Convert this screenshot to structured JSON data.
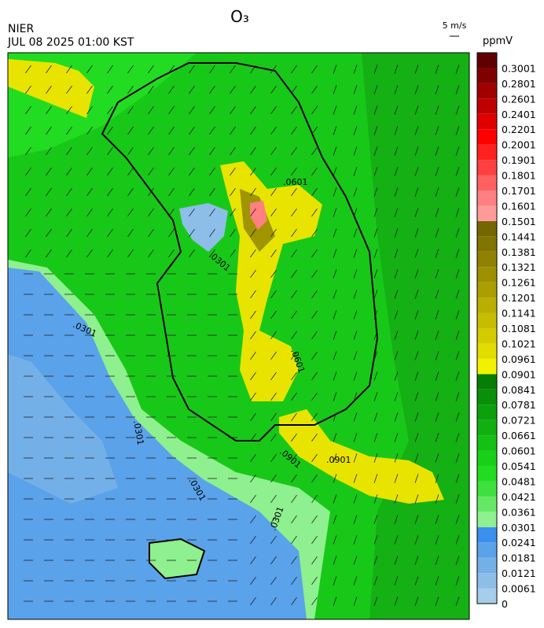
{
  "header": {
    "title": "O₃",
    "agency": "NIER",
    "timestamp": "JUL 08 2025 01:00 KST",
    "wind_scale": "5 m/s",
    "unit": "ppmV"
  },
  "colorbar": [
    {
      "label": "0",
      "color": "#a6cdea"
    },
    {
      "label": "0.0061",
      "color": "#8cbee8"
    },
    {
      "label": "0.0121",
      "color": "#74b0e8"
    },
    {
      "label": "0.0181",
      "color": "#5aa2ea"
    },
    {
      "label": "0.0241",
      "color": "#3a90ec"
    },
    {
      "label": "0.0301",
      "color": "#8ef08e"
    },
    {
      "label": "0.0361",
      "color": "#66e866"
    },
    {
      "label": "0.0421",
      "color": "#3ee03e"
    },
    {
      "label": "0.0481",
      "color": "#22dc22"
    },
    {
      "label": "0.0541",
      "color": "#18d018"
    },
    {
      "label": "0.0601",
      "color": "#14c014"
    },
    {
      "label": "0.0661",
      "color": "#10b010"
    },
    {
      "label": "0.0721",
      "color": "#0ca00c"
    },
    {
      "label": "0.0781",
      "color": "#089008"
    },
    {
      "label": "0.0841",
      "color": "#067e06"
    },
    {
      "label": "0.0901",
      "color": "#f2f200"
    },
    {
      "label": "0.0961",
      "color": "#e2dc00"
    },
    {
      "label": "0.1021",
      "color": "#d4cc00"
    },
    {
      "label": "0.1081",
      "color": "#c8bc00"
    },
    {
      "label": "0.1141",
      "color": "#baae00"
    },
    {
      "label": "0.1201",
      "color": "#ac9e00"
    },
    {
      "label": "0.1261",
      "color": "#9e9000"
    },
    {
      "label": "0.1321",
      "color": "#908200"
    },
    {
      "label": "0.1381",
      "color": "#827400"
    },
    {
      "label": "0.1441",
      "color": "#746600"
    },
    {
      "label": "0.1501",
      "color": "#ff9a9a"
    },
    {
      "label": "0.1601",
      "color": "#ff8080"
    },
    {
      "label": "0.1701",
      "color": "#ff6060"
    },
    {
      "label": "0.1801",
      "color": "#ff4040"
    },
    {
      "label": "0.1901",
      "color": "#ff2020"
    },
    {
      "label": "0.2001",
      "color": "#ff0000"
    },
    {
      "label": "0.2201",
      "color": "#e00000"
    },
    {
      "label": "0.2401",
      "color": "#c00000"
    },
    {
      "label": "0.2601",
      "color": "#a00000"
    },
    {
      "label": "0.2801",
      "color": "#800000"
    },
    {
      "label": "0.3001",
      "color": "#600000"
    }
  ],
  "contour_labels": [
    ".0301",
    ".0301",
    ".0301",
    ".0301",
    ".0601",
    ".0601",
    ".0901",
    ".0901",
    ".0301"
  ]
}
